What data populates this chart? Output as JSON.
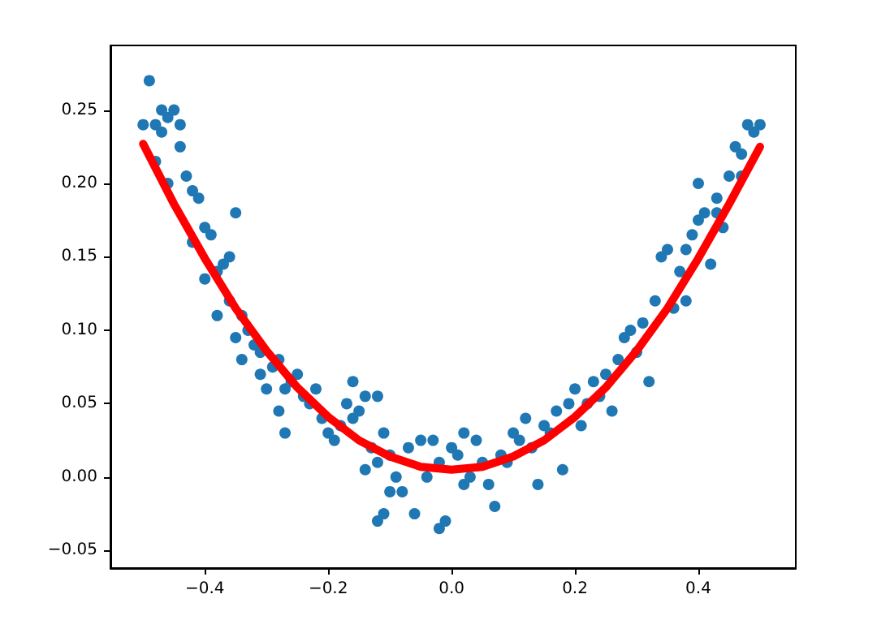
{
  "chart_data": {
    "type": "scatter",
    "marker": "circle",
    "grid": false,
    "xlim": [
      -0.553,
      0.558
    ],
    "ylim": [
      -0.062,
      0.294
    ],
    "xticks": [
      {
        "value": -0.4,
        "label": "−0.4"
      },
      {
        "value": -0.2,
        "label": "−0.2"
      },
      {
        "value": 0,
        "label": "0.0"
      },
      {
        "value": 0.2,
        "label": "0.2"
      },
      {
        "value": 0.4,
        "label": "0.4"
      }
    ],
    "yticks": [
      {
        "value": -0.05,
        "label": "−0.05"
      },
      {
        "value": 0,
        "label": "0.00"
      },
      {
        "value": 0.05,
        "label": "0.05"
      },
      {
        "value": 0.1,
        "label": "0.10"
      },
      {
        "value": 0.15,
        "label": "0.15"
      },
      {
        "value": 0.2,
        "label": "0.20"
      },
      {
        "value": 0.25,
        "label": "0.25"
      }
    ],
    "series": [
      {
        "color": "#1f77b4",
        "x": [
          -0.49,
          -0.5,
          -0.48,
          -0.47,
          -0.46,
          -0.45,
          -0.47,
          -0.44,
          -0.48,
          -0.44,
          -0.43,
          -0.46,
          -0.42,
          -0.41,
          -0.42,
          -0.4,
          -0.39,
          -0.4,
          -0.38,
          -0.37,
          -0.36,
          -0.35,
          -0.38,
          -0.36,
          -0.34,
          -0.35,
          -0.34,
          -0.33,
          -0.32,
          -0.31,
          -0.31,
          -0.3,
          -0.29,
          -0.28,
          -0.27,
          -0.28,
          -0.27,
          -0.26,
          -0.25,
          -0.24,
          -0.23,
          -0.22,
          -0.21,
          -0.2,
          -0.19,
          -0.18,
          -0.17,
          -0.16,
          -0.15,
          -0.14,
          -0.16,
          -0.12,
          -0.11,
          -0.13,
          -0.14,
          -0.12,
          -0.1,
          -0.09,
          -0.1,
          -0.11,
          -0.12,
          -0.08,
          -0.07,
          -0.05,
          -0.04,
          -0.06,
          -0.03,
          -0.02,
          -0.02,
          -0.01,
          0,
          0.01,
          0.02,
          0.03,
          0.02,
          0.04,
          0.05,
          0.06,
          0.07,
          0.08,
          0.09,
          0.1,
          0.11,
          0.12,
          0.13,
          0.14,
          0.15,
          0.16,
          0.17,
          0.18,
          0.19,
          0.2,
          0.21,
          0.22,
          0.23,
          0.24,
          0.25,
          0.26,
          0.27,
          0.28,
          0.29,
          0.3,
          0.31,
          0.32,
          0.33,
          0.34,
          0.35,
          0.36,
          0.37,
          0.38,
          0.39,
          0.4,
          0.41,
          0.42,
          0.43,
          0.44,
          0.45,
          0.46,
          0.47,
          0.48,
          0.49,
          0.5,
          0.47,
          0.43,
          0.4,
          0.38
        ],
        "values": [
          0.27,
          0.24,
          0.24,
          0.25,
          0.245,
          0.25,
          0.235,
          0.24,
          0.215,
          0.225,
          0.205,
          0.2,
          0.195,
          0.19,
          0.16,
          0.17,
          0.165,
          0.135,
          0.14,
          0.145,
          0.15,
          0.18,
          0.11,
          0.12,
          0.11,
          0.095,
          0.08,
          0.1,
          0.09,
          0.085,
          0.07,
          0.06,
          0.075,
          0.08,
          0.06,
          0.045,
          0.03,
          0.065,
          0.07,
          0.055,
          0.05,
          0.06,
          0.04,
          0.03,
          0.025,
          0.035,
          0.05,
          0.04,
          0.045,
          0.055,
          0.065,
          0.055,
          0.03,
          0.02,
          0.005,
          0.01,
          0.015,
          0,
          -0.01,
          -0.025,
          -0.03,
          -0.01,
          0.02,
          0.025,
          0,
          -0.025,
          0.025,
          0.01,
          -0.035,
          -0.03,
          0.02,
          0.015,
          0.03,
          0,
          -0.005,
          0.025,
          0.01,
          -0.005,
          -0.02,
          0.015,
          0.01,
          0.03,
          0.025,
          0.04,
          0.02,
          -0.005,
          0.035,
          0.03,
          0.045,
          0.005,
          0.05,
          0.06,
          0.035,
          0.05,
          0.065,
          0.055,
          0.07,
          0.045,
          0.08,
          0.095,
          0.1,
          0.085,
          0.105,
          0.065,
          0.12,
          0.15,
          0.155,
          0.115,
          0.14,
          0.12,
          0.165,
          0.175,
          0.18,
          0.145,
          0.19,
          0.17,
          0.205,
          0.225,
          0.22,
          0.24,
          0.235,
          0.24,
          0.205,
          0.18,
          0.2,
          0.155
        ]
      },
      {
        "type": "line",
        "color": "#ff0000",
        "marker": "none",
        "line_style": "solid",
        "x": [
          -0.5,
          -0.45,
          -0.4,
          -0.35,
          -0.3,
          -0.25,
          -0.2,
          -0.15,
          -0.1,
          -0.05,
          0,
          0.05,
          0.1,
          0.15,
          0.2,
          0.25,
          0.3,
          0.35,
          0.4,
          0.45,
          0.5
        ],
        "values": [
          0.227,
          0.186,
          0.149,
          0.115,
          0.086,
          0.061,
          0.041,
          0.025,
          0.014,
          0.007,
          0.005,
          0.007,
          0.014,
          0.025,
          0.041,
          0.061,
          0.086,
          0.115,
          0.149,
          0.186,
          0.225
        ]
      }
    ]
  }
}
